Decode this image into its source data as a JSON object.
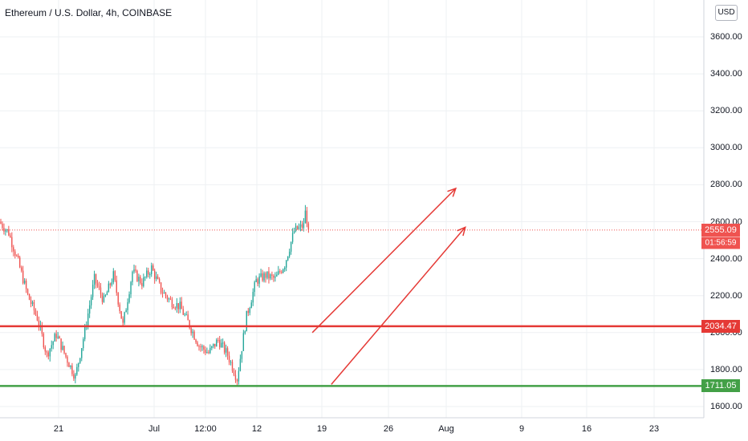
{
  "header": {
    "title": "Ethereum / U.S. Dollar, 4h, COINBASE",
    "currency_button": "USD"
  },
  "chart_data": {
    "type": "candlestick",
    "title": "Ethereum / U.S. Dollar, 4h, COINBASE",
    "ylim": [
      1560,
      3740
    ],
    "y_ticks": [
      "1600.00",
      "1800.00",
      "2000.00",
      "2200.00",
      "2400.00",
      "2600.00",
      "2800.00",
      "3000.00",
      "3200.00",
      "3400.00",
      "3600.00"
    ],
    "y_tick_values": [
      1600,
      1800,
      2000,
      2200,
      2400,
      2600,
      2800,
      3000,
      3200,
      3400,
      3600
    ],
    "x_ticks": [
      "21",
      "Jul",
      "12:00",
      "12",
      "19",
      "26",
      "Aug",
      "9",
      "16",
      "23"
    ],
    "grid": true,
    "colors": {
      "up": "#26a69a",
      "down": "#ef5350",
      "drawing": "#e53935",
      "support": "#43a047",
      "grid": "#eef0f3",
      "axis_text": "#131722"
    },
    "price_path_daily_closes": [
      2600,
      2540,
      2380,
      2200,
      2080,
      1880,
      1990,
      1870,
      1760,
      2010,
      2290,
      2170,
      2310,
      2040,
      2330,
      2270,
      2350,
      2230,
      2170,
      2140,
      2040,
      1930,
      1890,
      1960,
      1880,
      1750,
      2090,
      2280,
      2310,
      2290,
      2370,
      2550,
      2580
    ],
    "price_path_note_removed": true,
    "current_price": {
      "value": 2555.09,
      "label": "2555.09",
      "countdown": "01:56:59",
      "color": "#ef5350"
    },
    "horizontal_levels": [
      {
        "value": 2034.47,
        "label": "2034.47",
        "color": "#e53935"
      },
      {
        "value": 1711.05,
        "label": "1711.05",
        "color": "#43a047"
      }
    ],
    "trend_channel": {
      "upper_from": [
        "Jul 18",
        2000
      ],
      "upper_to": [
        "Aug 2",
        2780
      ],
      "lower_from": [
        "Jul 20",
        1720
      ],
      "lower_to": [
        "Aug 3",
        2570
      ]
    }
  }
}
